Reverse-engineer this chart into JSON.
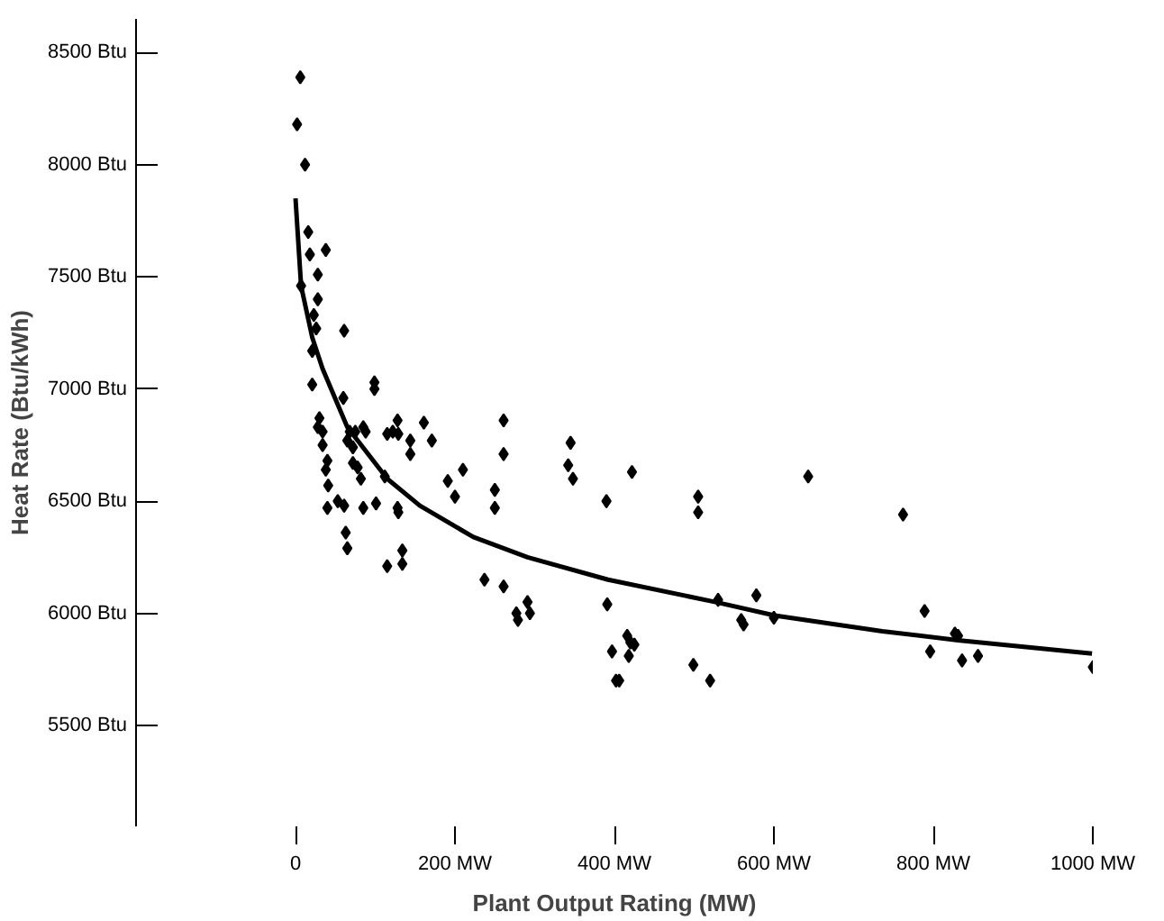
{
  "chart_data": {
    "type": "scatter",
    "xlabel": "Plant Output Rating (MW)",
    "ylabel": "Heat Rate (Btu/kWh)",
    "xlim": [
      -200,
      1000
    ],
    "ylim": [
      5050,
      8650
    ],
    "xticks": [
      0,
      {
        "value": 200,
        "label": "200 MW"
      },
      {
        "value": 400,
        "label": "400 MW"
      },
      {
        "value": 600,
        "label": "600 MW"
      },
      {
        "value": 800,
        "label": "800 MW"
      },
      {
        "value": 1000,
        "label": "1000 MW"
      }
    ],
    "yticks": [
      {
        "value": 5500,
        "label": "5500 Btu"
      },
      {
        "value": 6000,
        "label": "6000 Btu"
      },
      {
        "value": 6500,
        "label": "6500 Btu"
      },
      {
        "value": 7000,
        "label": "7000 Btu"
      },
      {
        "value": 7500,
        "label": "7500 Btu"
      },
      {
        "value": 8000,
        "label": "8000 Btu"
      },
      {
        "value": 8500,
        "label": "8500 Btu"
      }
    ],
    "grid": false,
    "series": [
      {
        "color": "#000000",
        "marker": "diamond",
        "x": [
          6,
          2,
          12,
          16,
          18,
          38,
          28,
          7,
          28,
          23,
          26,
          61,
          21,
          21,
          99,
          99,
          60,
          30,
          28,
          34,
          34,
          68,
          75,
          88,
          85,
          65,
          72,
          128,
          115,
          122,
          129,
          161,
          144,
          171,
          144,
          40,
          38,
          72,
          78,
          82,
          112,
          41,
          261,
          261,
          210,
          191,
          200,
          250,
          250,
          53,
          61,
          40,
          85,
          101,
          128,
          129,
          63,
          65,
          134,
          115,
          134,
          237,
          261,
          345,
          342,
          348,
          422,
          390,
          505,
          505,
          643,
          291,
          277,
          294,
          279,
          391,
          416,
          420,
          425,
          397,
          418,
          402,
          406,
          499,
          520,
          530,
          578,
          559,
          562,
          600,
          762,
          789,
          796,
          827,
          831,
          836,
          856,
          1000
        ],
        "values": [
          8390,
          8180,
          8000,
          7700,
          7600,
          7620,
          7510,
          7460,
          7400,
          7330,
          7270,
          7260,
          7170,
          7020,
          7030,
          7000,
          6960,
          6870,
          6830,
          6810,
          6750,
          6810,
          6810,
          6810,
          6830,
          6770,
          6740,
          6860,
          6800,
          6810,
          6800,
          6850,
          6770,
          6770,
          6710,
          6680,
          6640,
          6670,
          6650,
          6600,
          6610,
          6570,
          6860,
          6710,
          6640,
          6590,
          6520,
          6550,
          6470,
          6500,
          6480,
          6470,
          6470,
          6490,
          6470,
          6450,
          6360,
          6290,
          6280,
          6210,
          6220,
          6150,
          6120,
          6760,
          6660,
          6600,
          6630,
          6500,
          6520,
          6450,
          6610,
          6050,
          6000,
          6000,
          5970,
          6040,
          5900,
          5870,
          5860,
          5830,
          5810,
          5700,
          5700,
          5770,
          5700,
          6060,
          6080,
          5970,
          5950,
          5980,
          6440,
          6010,
          5830,
          5910,
          5900,
          5790,
          5810,
          5760
        ]
      },
      {
        "type": "line",
        "color": "#000000",
        "line_style": "solid",
        "x": [
          0,
          7,
          21,
          34,
          65,
          115,
          156,
          223,
          291,
          392,
          527,
          601,
          736,
          831,
          999
        ],
        "values": [
          7850,
          7460,
          7230,
          7090,
          6830,
          6600,
          6480,
          6340,
          6250,
          6150,
          6050,
          5990,
          5920,
          5880,
          5820
        ]
      }
    ]
  }
}
